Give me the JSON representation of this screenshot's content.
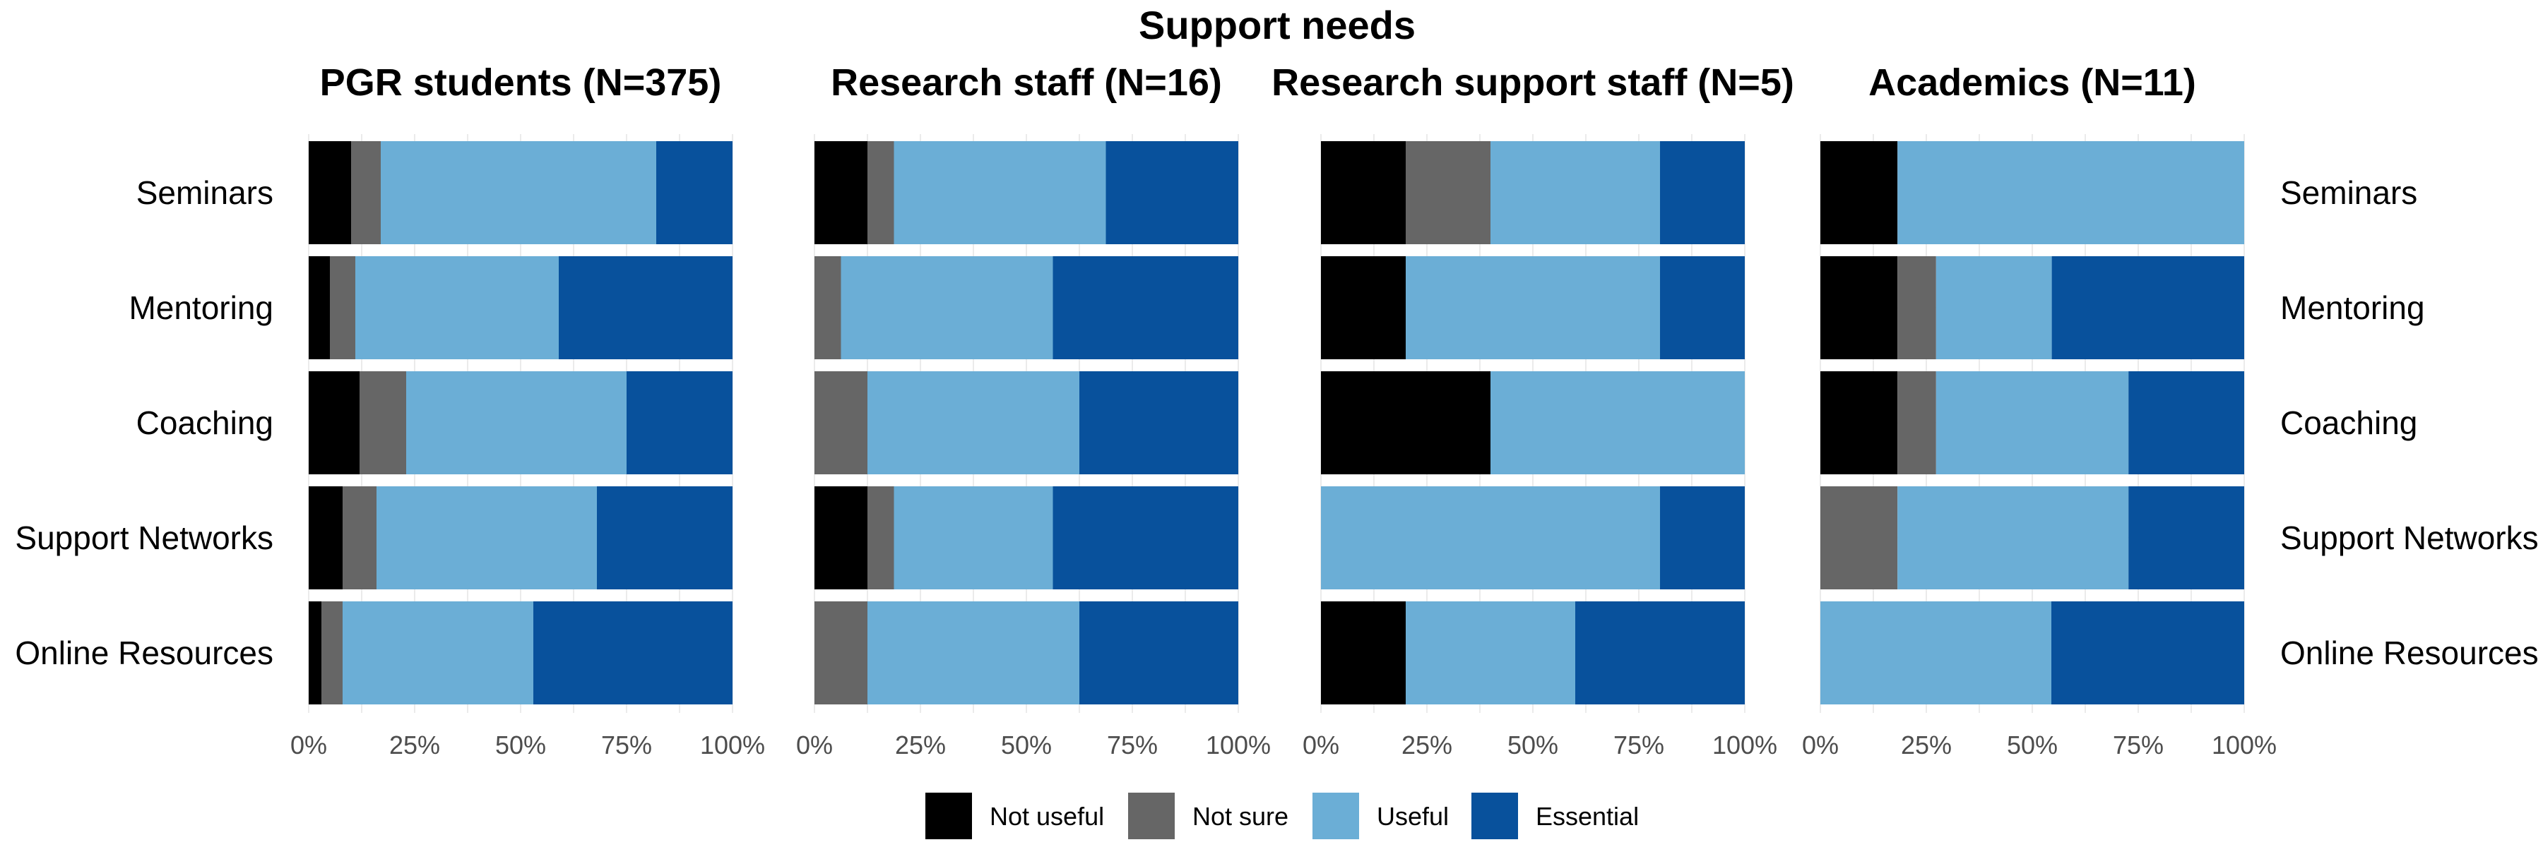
{
  "chart_data": {
    "type": "bar",
    "orientation": "horizontal-stacked-percent",
    "title": "Support needs",
    "categories": [
      "Seminars",
      "Mentoring",
      "Coaching",
      "Support Networks",
      "Online Resources"
    ],
    "x_ticks": [
      "0%",
      "25%",
      "50%",
      "75%",
      "100%"
    ],
    "xlim": [
      0,
      100
    ],
    "legend_position": "bottom",
    "grid": true,
    "legend": [
      {
        "name": "Not useful",
        "color": "#000000"
      },
      {
        "name": "Not sure",
        "color": "#666666"
      },
      {
        "name": "Useful",
        "color": "#6baed6"
      },
      {
        "name": "Essential",
        "color": "#08519c"
      }
    ],
    "panels": [
      {
        "title": "PGR students (N=375)",
        "series": [
          {
            "name": "Not useful",
            "values": [
              10,
              5,
              12,
              8,
              3
            ]
          },
          {
            "name": "Not sure",
            "values": [
              7,
              6,
              11,
              8,
              5
            ]
          },
          {
            "name": "Useful",
            "values": [
              65,
              48,
              52,
              52,
              45
            ]
          },
          {
            "name": "Essential",
            "values": [
              18,
              41,
              25,
              32,
              47
            ]
          }
        ]
      },
      {
        "title": "Research staff (N=16)",
        "series": [
          {
            "name": "Not useful",
            "values": [
              12.5,
              0,
              0,
              12.5,
              0
            ]
          },
          {
            "name": "Not sure",
            "values": [
              6.25,
              6.25,
              12.5,
              6.25,
              12.5
            ]
          },
          {
            "name": "Useful",
            "values": [
              50,
              50,
              50,
              37.5,
              50
            ]
          },
          {
            "name": "Essential",
            "values": [
              31.25,
              43.75,
              37.5,
              43.75,
              37.5
            ]
          }
        ]
      },
      {
        "title": "Research support staff (N=5)",
        "series": [
          {
            "name": "Not useful",
            "values": [
              20,
              20,
              40,
              0,
              20
            ]
          },
          {
            "name": "Not sure",
            "values": [
              20,
              0,
              0,
              0,
              0
            ]
          },
          {
            "name": "Useful",
            "values": [
              40,
              60,
              60,
              80,
              40
            ]
          },
          {
            "name": "Essential",
            "values": [
              20,
              20,
              0,
              20,
              40
            ]
          }
        ]
      },
      {
        "title": "Academics (N=11)",
        "series": [
          {
            "name": "Not useful",
            "values": [
              18.2,
              18.2,
              18.2,
              0,
              0
            ]
          },
          {
            "name": "Not sure",
            "values": [
              0,
              9.1,
              9.1,
              18.2,
              0
            ]
          },
          {
            "name": "Useful",
            "values": [
              81.8,
              27.3,
              45.4,
              54.5,
              54.5
            ]
          },
          {
            "name": "Essential",
            "values": [
              0,
              45.4,
              27.3,
              27.3,
              45.5
            ]
          }
        ]
      }
    ]
  }
}
